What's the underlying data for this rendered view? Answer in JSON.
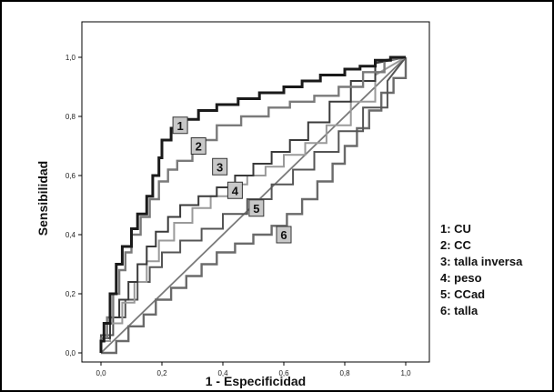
{
  "chart_data": {
    "type": "line",
    "xlabel": "1 - Especificidad",
    "ylabel": "Sensibilidad",
    "xlim": [
      0,
      1
    ],
    "ylim": [
      0,
      1
    ],
    "xticks": [
      "0,0",
      "0,2",
      "0,4",
      "0,6",
      "0,8",
      "1,0"
    ],
    "yticks": [
      "0,0",
      "0,2",
      "0,4",
      "0,6",
      "0,8",
      "1,0"
    ],
    "reference_line": {
      "x": [
        0,
        1
      ],
      "y": [
        0,
        1
      ]
    },
    "legend": [
      "1: CU",
      "2: CC",
      "3: talla inversa",
      "4: peso",
      "5: CCad",
      "6: talla"
    ],
    "series": [
      {
        "name": "1",
        "color": "#1a1a1a",
        "x": [
          0,
          0,
          0.01,
          0.01,
          0.03,
          0.03,
          0.05,
          0.05,
          0.07,
          0.07,
          0.1,
          0.1,
          0.12,
          0.12,
          0.15,
          0.15,
          0.17,
          0.17,
          0.19,
          0.19,
          0.2,
          0.2,
          0.23,
          0.23,
          0.27,
          0.27,
          0.32,
          0.32,
          0.38,
          0.38,
          0.45,
          0.45,
          0.52,
          0.52,
          0.6,
          0.6,
          0.66,
          0.66,
          0.72,
          0.72,
          0.8,
          0.8,
          0.85,
          0.85,
          0.9,
          0.9,
          0.95,
          0.95,
          1.0
        ],
        "y": [
          0,
          0.04,
          0.04,
          0.1,
          0.1,
          0.2,
          0.2,
          0.3,
          0.3,
          0.36,
          0.36,
          0.42,
          0.42,
          0.47,
          0.47,
          0.53,
          0.53,
          0.6,
          0.6,
          0.66,
          0.66,
          0.72,
          0.72,
          0.76,
          0.76,
          0.79,
          0.79,
          0.82,
          0.82,
          0.84,
          0.84,
          0.86,
          0.86,
          0.88,
          0.88,
          0.9,
          0.9,
          0.92,
          0.92,
          0.94,
          0.94,
          0.96,
          0.96,
          0.97,
          0.97,
          0.99,
          0.99,
          1.0,
          1.0
        ]
      },
      {
        "name": "2",
        "color": "#7a7a7a",
        "x": [
          0,
          0,
          0.02,
          0.02,
          0.04,
          0.04,
          0.06,
          0.06,
          0.08,
          0.08,
          0.1,
          0.1,
          0.13,
          0.13,
          0.16,
          0.16,
          0.19,
          0.19,
          0.22,
          0.22,
          0.25,
          0.25,
          0.3,
          0.3,
          0.38,
          0.38,
          0.46,
          0.46,
          0.55,
          0.55,
          0.62,
          0.62,
          0.7,
          0.7,
          0.78,
          0.78,
          0.86,
          0.86,
          0.93,
          0.93,
          1.0
        ],
        "y": [
          0,
          0.05,
          0.05,
          0.12,
          0.12,
          0.2,
          0.2,
          0.28,
          0.28,
          0.34,
          0.34,
          0.4,
          0.4,
          0.46,
          0.46,
          0.52,
          0.52,
          0.58,
          0.58,
          0.62,
          0.62,
          0.65,
          0.65,
          0.72,
          0.72,
          0.77,
          0.77,
          0.8,
          0.8,
          0.83,
          0.83,
          0.85,
          0.85,
          0.87,
          0.87,
          0.9,
          0.9,
          0.95,
          0.95,
          0.99,
          1.0
        ]
      },
      {
        "name": "3",
        "color": "#3a3a3a",
        "x": [
          0,
          0,
          0.03,
          0.03,
          0.06,
          0.06,
          0.09,
          0.09,
          0.12,
          0.12,
          0.15,
          0.15,
          0.18,
          0.18,
          0.22,
          0.22,
          0.26,
          0.26,
          0.32,
          0.32,
          0.38,
          0.38,
          0.44,
          0.44,
          0.5,
          0.5,
          0.56,
          0.56,
          0.62,
          0.62,
          0.68,
          0.68,
          0.75,
          0.75,
          0.82,
          0.82,
          0.9,
          0.9,
          1.0
        ],
        "y": [
          0,
          0.05,
          0.05,
          0.12,
          0.12,
          0.18,
          0.18,
          0.24,
          0.24,
          0.3,
          0.3,
          0.36,
          0.36,
          0.41,
          0.41,
          0.46,
          0.46,
          0.5,
          0.5,
          0.53,
          0.53,
          0.56,
          0.56,
          0.6,
          0.6,
          0.64,
          0.64,
          0.68,
          0.68,
          0.72,
          0.72,
          0.78,
          0.78,
          0.85,
          0.85,
          0.92,
          0.92,
          0.98,
          1.0
        ]
      },
      {
        "name": "4",
        "color": "#9a9a9a",
        "x": [
          0,
          0,
          0.03,
          0.03,
          0.07,
          0.07,
          0.11,
          0.11,
          0.15,
          0.15,
          0.19,
          0.19,
          0.24,
          0.24,
          0.3,
          0.3,
          0.36,
          0.36,
          0.42,
          0.42,
          0.48,
          0.48,
          0.54,
          0.54,
          0.6,
          0.6,
          0.67,
          0.67,
          0.74,
          0.74,
          0.82,
          0.82,
          0.9,
          0.9,
          1.0
        ],
        "y": [
          0,
          0.04,
          0.04,
          0.1,
          0.1,
          0.17,
          0.17,
          0.24,
          0.24,
          0.31,
          0.31,
          0.38,
          0.38,
          0.44,
          0.44,
          0.49,
          0.49,
          0.53,
          0.53,
          0.57,
          0.57,
          0.6,
          0.6,
          0.63,
          0.63,
          0.67,
          0.67,
          0.71,
          0.71,
          0.77,
          0.77,
          0.85,
          0.85,
          0.94,
          1.0
        ]
      },
      {
        "name": "5",
        "color": "#555555",
        "x": [
          0,
          0,
          0.04,
          0.04,
          0.08,
          0.08,
          0.12,
          0.12,
          0.16,
          0.16,
          0.2,
          0.2,
          0.26,
          0.26,
          0.33,
          0.33,
          0.4,
          0.4,
          0.48,
          0.48,
          0.56,
          0.56,
          0.63,
          0.63,
          0.7,
          0.7,
          0.78,
          0.78,
          0.86,
          0.86,
          0.94,
          0.94,
          1.0
        ],
        "y": [
          0,
          0.06,
          0.06,
          0.12,
          0.12,
          0.18,
          0.18,
          0.24,
          0.24,
          0.29,
          0.29,
          0.34,
          0.34,
          0.38,
          0.38,
          0.42,
          0.42,
          0.47,
          0.47,
          0.52,
          0.52,
          0.57,
          0.57,
          0.62,
          0.62,
          0.68,
          0.68,
          0.75,
          0.75,
          0.83,
          0.83,
          0.92,
          1.0
        ]
      },
      {
        "name": "6",
        "color": "#6a6a6a",
        "x": [
          0,
          0.05,
          0.05,
          0.09,
          0.09,
          0.14,
          0.14,
          0.18,
          0.18,
          0.23,
          0.23,
          0.28,
          0.28,
          0.33,
          0.33,
          0.38,
          0.38,
          0.44,
          0.44,
          0.5,
          0.5,
          0.56,
          0.56,
          0.61,
          0.61,
          0.66,
          0.66,
          0.71,
          0.71,
          0.76,
          0.76,
          0.8,
          0.8,
          0.84,
          0.84,
          0.88,
          0.88,
          0.92,
          0.92,
          0.96,
          0.96,
          1.0,
          1.0
        ],
        "y": [
          0,
          0,
          0.04,
          0.04,
          0.09,
          0.09,
          0.13,
          0.13,
          0.18,
          0.18,
          0.22,
          0.22,
          0.26,
          0.26,
          0.3,
          0.3,
          0.34,
          0.34,
          0.37,
          0.37,
          0.4,
          0.4,
          0.43,
          0.43,
          0.47,
          0.47,
          0.52,
          0.52,
          0.58,
          0.58,
          0.64,
          0.64,
          0.7,
          0.7,
          0.76,
          0.76,
          0.82,
          0.82,
          0.88,
          0.88,
          0.93,
          0.93,
          1.0
        ]
      }
    ],
    "curve_labels": [
      {
        "text": "1",
        "x": 0.26,
        "y": 0.77
      },
      {
        "text": "2",
        "x": 0.32,
        "y": 0.7
      },
      {
        "text": "3",
        "x": 0.39,
        "y": 0.63
      },
      {
        "text": "4",
        "x": 0.44,
        "y": 0.55
      },
      {
        "text": "5",
        "x": 0.51,
        "y": 0.49
      },
      {
        "text": "6",
        "x": 0.6,
        "y": 0.4
      }
    ]
  }
}
